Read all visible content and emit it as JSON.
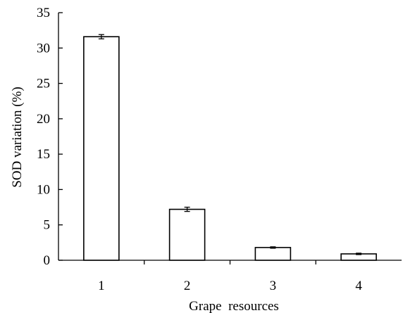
{
  "chart_data": {
    "type": "bar",
    "title": "",
    "xlabel": "Grape  resources",
    "ylabel": "SOD variation (%)",
    "categories": [
      "1",
      "2",
      "3",
      "4"
    ],
    "values": [
      31.6,
      7.2,
      1.8,
      0.9
    ],
    "errors": [
      0.3,
      0.3,
      0.1,
      0.1
    ],
    "ylim": [
      0,
      35
    ],
    "yticks": [
      0,
      5,
      10,
      15,
      20,
      25,
      30,
      35
    ],
    "ytick_labels": [
      "0",
      "5",
      "10",
      "15",
      "20",
      "25",
      "30",
      "35"
    ],
    "grid": false,
    "legend": "none",
    "bar_fill": "#ffffff",
    "bar_stroke": "#000000"
  }
}
